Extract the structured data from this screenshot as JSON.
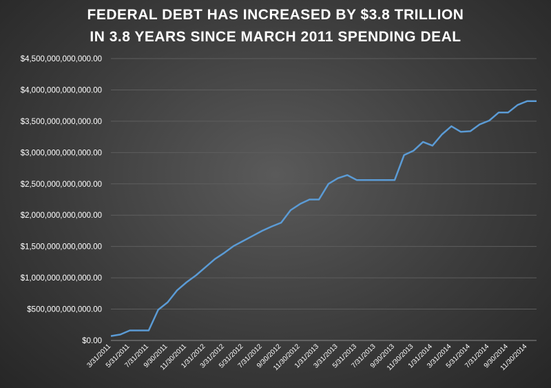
{
  "chart_data": {
    "type": "line",
    "title": [
      "FEDERAL DEBT HAS INCREASED BY $3.8 TRILLION",
      "IN 3.8 YEARS SINCE MARCH 2011 SPENDING DEAL"
    ],
    "xlabel": "",
    "ylabel": "",
    "ylim": [
      0,
      4500000000000
    ],
    "yticks": [
      0,
      500000000000,
      1000000000000,
      1500000000000,
      2000000000000,
      2500000000000,
      3000000000000,
      3500000000000,
      4000000000000,
      4500000000000
    ],
    "ytick_labels": [
      "$0.00",
      "$500,000,000,000.00",
      "$1,000,000,000,000.00",
      "$1,500,000,000,000.00",
      "$2,000,000,000,000.00",
      "$2,500,000,000,000.00",
      "$3,000,000,000,000.00",
      "$3,500,000,000,000.00",
      "$4,000,000,000,000.00",
      "$4,500,000,000,000.00"
    ],
    "x": [
      "3/31/2011",
      "4/30/2011",
      "5/31/2011",
      "6/30/2011",
      "7/31/2011",
      "8/31/2011",
      "9/30/2011",
      "10/31/2011",
      "11/30/2011",
      "12/31/2011",
      "1/31/2012",
      "2/29/2012",
      "3/31/2012",
      "4/30/2012",
      "5/31/2012",
      "6/30/2012",
      "7/31/2012",
      "8/31/2012",
      "9/30/2012",
      "10/31/2012",
      "11/30/2012",
      "12/31/2012",
      "1/31/2013",
      "2/28/2013",
      "3/31/2013",
      "4/30/2013",
      "5/31/2013",
      "6/30/2013",
      "7/31/2013",
      "8/31/2013",
      "9/30/2013",
      "10/31/2013",
      "11/30/2013",
      "12/31/2013",
      "1/31/2014",
      "2/28/2014",
      "3/31/2014",
      "4/30/2014",
      "5/31/2014",
      "6/30/2014",
      "7/31/2014",
      "8/31/2014",
      "9/30/2014",
      "10/31/2014",
      "11/30/2014",
      "12/31/2014"
    ],
    "xtick_labels": [
      "3/31/2011",
      "",
      "5/31/2011",
      "",
      "7/31/2011",
      "",
      "9/30/2011",
      "",
      "11/30/2011",
      "",
      "1/31/2012",
      "",
      "3/31/2012",
      "",
      "5/31/2012",
      "",
      "7/31/2012",
      "",
      "9/30/2012",
      "",
      "11/30/2012",
      "",
      "1/31/2013",
      "",
      "3/31/2013",
      "",
      "5/31/2013",
      "",
      "7/31/2013",
      "",
      "9/30/2013",
      "",
      "11/30/2013",
      "",
      "1/31/2014",
      "",
      "3/31/2014",
      "",
      "5/31/2014",
      "",
      "7/31/2014",
      "",
      "9/30/2014",
      "",
      "11/30/2014",
      ""
    ],
    "series": [
      {
        "name": "",
        "color": "#5b9bd5",
        "values": [
          70000000000,
          95000000000,
          160000000000,
          160000000000,
          160000000000,
          490000000000,
          610000000000,
          800000000000,
          930000000000,
          1040000000000,
          1170000000000,
          1300000000000,
          1400000000000,
          1510000000000,
          1590000000000,
          1670000000000,
          1750000000000,
          1820000000000,
          1880000000000,
          2080000000000,
          2180000000000,
          2250000000000,
          2250000000000,
          2500000000000,
          2590000000000,
          2640000000000,
          2560000000000,
          2560000000000,
          2560000000000,
          2560000000000,
          2560000000000,
          2960000000000,
          3030000000000,
          3170000000000,
          3110000000000,
          3290000000000,
          3420000000000,
          3330000000000,
          3340000000000,
          3450000000000,
          3510000000000,
          3640000000000,
          3640000000000,
          3760000000000,
          3820000000000,
          3820000000000
        ]
      }
    ],
    "grid": true,
    "legend": "none"
  }
}
